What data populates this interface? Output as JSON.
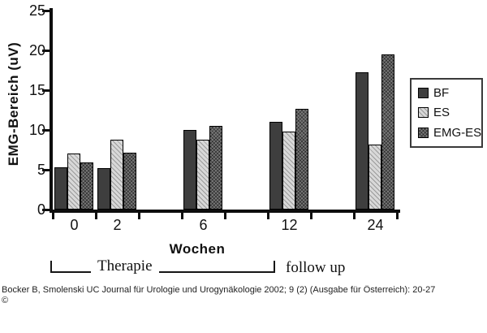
{
  "chart_data": {
    "type": "bar",
    "title": "",
    "ylabel": "EMG-Bereich (uV)",
    "xlabel": "Wochen",
    "categories": [
      "0",
      "2",
      "6",
      "12",
      "24"
    ],
    "series": [
      {
        "name": "BF",
        "values": [
          5.3,
          5.2,
          10.0,
          11.0,
          17.2
        ],
        "color": "#3e3e3e",
        "pattern": "solid"
      },
      {
        "name": "ES",
        "values": [
          7.0,
          8.8,
          8.8,
          9.8,
          8.2
        ],
        "color": "#d8d8d8",
        "pattern": "diagonal-hatch"
      },
      {
        "name": "EMG-ES",
        "values": [
          5.9,
          7.1,
          10.5,
          12.7,
          19.5
        ],
        "color": "#7a7a7a",
        "pattern": "cross-hatch"
      }
    ],
    "ylim": [
      0,
      25
    ],
    "yticks": [
      0,
      5,
      10,
      15,
      20,
      25
    ],
    "grid": false,
    "legend_position": "right",
    "annotations": {
      "therapie_label": "Therapie",
      "follow_up_label": "follow up"
    }
  },
  "caption": {
    "text": "Bocker B, Smolenski UC Journal für Urologie und Urogynäkologie 2002; 9 (2) (Ausgabe für Österreich): 20-27",
    "copyright_symbol": "©"
  }
}
